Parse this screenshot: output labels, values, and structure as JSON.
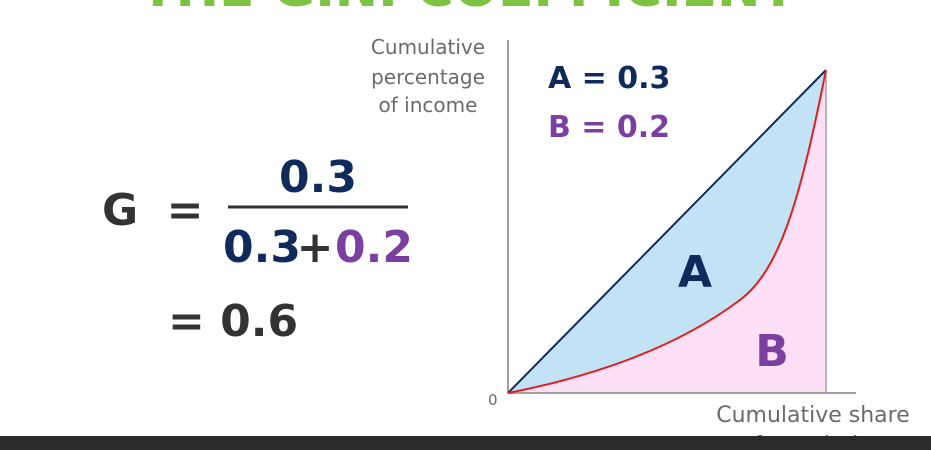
{
  "slide": {
    "title": "THE GINI COEFFICIENT",
    "y_axis_label": [
      "Cumulative",
      "percentage",
      "of income"
    ],
    "x_axis_label": [
      "Cumulative share",
      "of population"
    ],
    "origin_label": "0",
    "legend": {
      "a": "A = 0.3",
      "b": "B = 0.2"
    },
    "regions": {
      "a": "A",
      "b": "B"
    },
    "formula": {
      "lhs": "G",
      "equals": "=",
      "numerator": "0.3",
      "denominator": {
        "first": "0.3",
        "plus": "+",
        "second": "0.2"
      },
      "result": "= 0.6"
    }
  }
}
